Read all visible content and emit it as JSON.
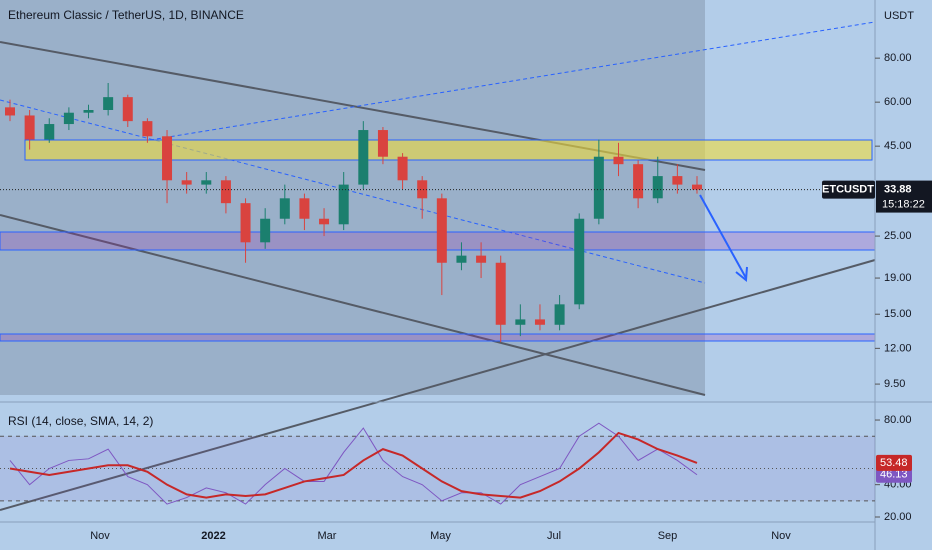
{
  "header": {
    "title": "Ethereum Classic / TetherUS, 1D, BINANCE"
  },
  "chart_data": {
    "type": "candlestick",
    "axis_unit": "USDT",
    "log_scale": true,
    "ylim": [
      8.45,
      117
    ],
    "yticks": [
      {
        "value": 9.5,
        "label": "9.50"
      },
      {
        "value": 12,
        "label": "12.00"
      },
      {
        "value": 15,
        "label": "15.00"
      },
      {
        "value": 19,
        "label": "19.00"
      },
      {
        "value": 25,
        "label": "25.00"
      },
      {
        "value": 45,
        "label": "45.00"
      },
      {
        "value": 60,
        "label": "60.00"
      },
      {
        "value": 80,
        "label": "80.00"
      }
    ],
    "x_axis_labels": [
      "Nov",
      "2022",
      "Mar",
      "May",
      "Jul",
      "Sep",
      "Nov"
    ],
    "up_color": "#1b7f6e",
    "down_color": "#d9433f",
    "open": [
      58,
      55,
      47,
      52,
      56,
      57,
      62,
      53,
      48,
      36,
      35,
      36,
      31,
      24,
      28,
      32,
      28,
      27,
      35,
      50,
      42,
      36,
      32,
      21,
      22,
      21,
      14,
      14.5,
      14,
      16,
      28,
      42,
      40,
      32,
      37,
      35
    ],
    "high": [
      61,
      57,
      54,
      58,
      59,
      68,
      63,
      54,
      50,
      38,
      38,
      37,
      32,
      30,
      35,
      33,
      30,
      38,
      53,
      51,
      43,
      37,
      33,
      24,
      24,
      22,
      16,
      16,
      17,
      29,
      47,
      46,
      41,
      42,
      40,
      37
    ],
    "low": [
      53,
      44,
      46,
      50,
      54,
      55,
      51,
      46,
      31,
      33,
      33,
      29,
      21,
      23,
      27,
      26,
      25,
      26,
      34,
      40,
      34,
      28,
      17,
      20,
      19,
      12.5,
      13,
      13.5,
      13.5,
      15.5,
      27,
      37,
      30,
      31,
      33,
      33
    ],
    "close": [
      55,
      47,
      52,
      56,
      57,
      62,
      53,
      48,
      36,
      35,
      36,
      31,
      24,
      28,
      32,
      28,
      27,
      35,
      50,
      42,
      36,
      32,
      21,
      22,
      21,
      14,
      14.5,
      14,
      16,
      28,
      42,
      40,
      32,
      37,
      35,
      33.88
    ],
    "last_price": {
      "symbol": "ETCUSDT",
      "price": 33.88,
      "label": "33.88",
      "countdown": "15:18:22"
    }
  },
  "indicator": {
    "type": "line",
    "title": "RSI (14, close, SMA, 14, 2)",
    "ylim": [
      16.9,
      89.3
    ],
    "yticks": [
      {
        "value": 80,
        "label": "80.00"
      },
      {
        "value": 40,
        "label": "40.00"
      },
      {
        "value": 20,
        "label": "20.00"
      }
    ],
    "bands": [
      70,
      50,
      30
    ],
    "series": [
      {
        "color": "#7e57c2",
        "values": [
          55,
          40,
          50,
          55,
          56,
          62,
          45,
          40,
          28,
          32,
          38,
          35,
          28,
          40,
          50,
          42,
          42,
          60,
          75,
          55,
          45,
          40,
          30,
          35,
          35,
          28,
          40,
          45,
          50,
          70,
          78,
          70,
          55,
          62,
          55,
          46.13
        ],
        "value_labels": "46.13"
      },
      {
        "color": "#c62828",
        "values": [
          50,
          48,
          46,
          48,
          50,
          52,
          52,
          48,
          40,
          34,
          32,
          34,
          33,
          34,
          38,
          42,
          44,
          46,
          55,
          62,
          58,
          50,
          42,
          36,
          34,
          33,
          32,
          36,
          42,
          50,
          60,
          72,
          68,
          62,
          58,
          53.48
        ],
        "value_labels": "53.48"
      }
    ]
  }
}
